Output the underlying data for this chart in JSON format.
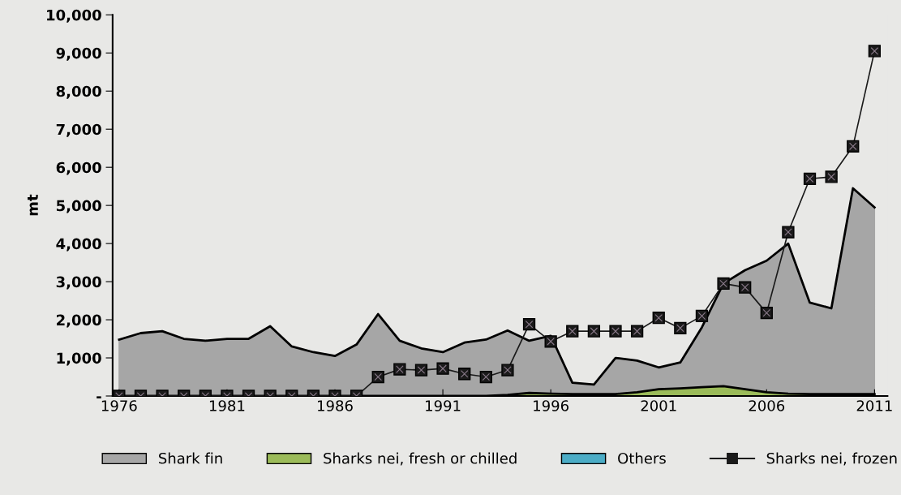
{
  "chart_data": {
    "type": "area",
    "ylabel": "mt",
    "x": [
      1976,
      1977,
      1978,
      1979,
      1980,
      1981,
      1982,
      1983,
      1984,
      1985,
      1986,
      1987,
      1988,
      1989,
      1990,
      1991,
      1992,
      1993,
      1994,
      1995,
      1996,
      1997,
      1998,
      1999,
      2000,
      2001,
      2002,
      2003,
      2004,
      2005,
      2006,
      2007,
      2008,
      2009,
      2010,
      2011
    ],
    "series": [
      {
        "name": "Shark fin",
        "color": "#a6a6a6",
        "values": [
          1480,
          1650,
          1700,
          1500,
          1450,
          1500,
          1500,
          1830,
          1300,
          1150,
          1050,
          1350,
          2150,
          1450,
          1250,
          1150,
          1400,
          1480,
          1720,
          1450,
          1580,
          350,
          300,
          1000,
          930,
          750,
          880,
          1800,
          2950,
          3300,
          3550,
          4000,
          2450,
          2300,
          5450,
          4950
        ]
      },
      {
        "name": "Sharks nei, fresh or chilled",
        "color": "#9bbb59",
        "values": [
          0,
          0,
          0,
          0,
          0,
          0,
          0,
          0,
          0,
          0,
          0,
          0,
          0,
          0,
          0,
          0,
          0,
          0,
          30,
          80,
          60,
          50,
          50,
          50,
          100,
          180,
          200,
          230,
          260,
          180,
          100,
          60,
          50,
          50,
          50,
          50
        ]
      },
      {
        "name": "Others",
        "color": "#4bacc6",
        "values": [
          null,
          null,
          null,
          null,
          null,
          null,
          null,
          null,
          null,
          null,
          null,
          null,
          null,
          null,
          null,
          null,
          null,
          null,
          null,
          null,
          null,
          null,
          null,
          null,
          null,
          null,
          null,
          null,
          null,
          null,
          null,
          null,
          null,
          null,
          null,
          null
        ]
      },
      {
        "name": "Sharks nei, frozen",
        "type": "line",
        "color": "#1a1a1a",
        "marker": "square",
        "values": [
          0,
          0,
          0,
          0,
          0,
          0,
          0,
          0,
          0,
          0,
          0,
          0,
          500,
          700,
          680,
          720,
          580,
          500,
          680,
          1880,
          1430,
          1700,
          1700,
          1700,
          1700,
          2050,
          1780,
          2100,
          2950,
          2850,
          2180,
          4300,
          5700,
          5750,
          6550,
          9050
        ]
      }
    ],
    "xlim": [
      1975.7,
      2011.6
    ],
    "xticks": [
      1976,
      1981,
      1986,
      1991,
      1996,
      2001,
      2006,
      2011
    ],
    "ylim": [
      0,
      10000
    ],
    "yticks": [
      {
        "value": 0,
        "label": "-"
      },
      {
        "value": 1000,
        "label": "1,000"
      },
      {
        "value": 2000,
        "label": "2,000"
      },
      {
        "value": 3000,
        "label": "3,000"
      },
      {
        "value": 4000,
        "label": "4,000"
      },
      {
        "value": 5000,
        "label": "5,000"
      },
      {
        "value": 6000,
        "label": "6,000"
      },
      {
        "value": 7000,
        "label": "7,000"
      },
      {
        "value": 8000,
        "label": "8,000"
      },
      {
        "value": 9000,
        "label": "9,000"
      },
      {
        "value": 10000,
        "label": "10,000"
      }
    ],
    "grid": false,
    "legend": "bottom"
  }
}
